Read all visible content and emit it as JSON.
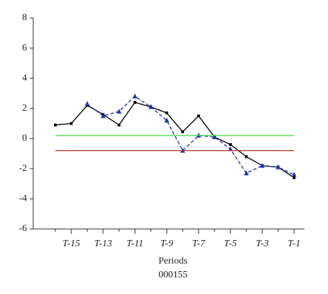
{
  "chart_data": {
    "type": "line",
    "categories": [
      null,
      "T-15",
      null,
      "T-13",
      null,
      "T-11",
      null,
      "T-9",
      null,
      "T-7",
      null,
      "T-5",
      null,
      "T-3",
      null,
      "T-1"
    ],
    "series": [
      {
        "color": "#000000",
        "style": "solid",
        "marker": "square",
        "values": [
          0.9,
          1.0,
          2.2,
          1.6,
          0.9,
          2.4,
          2.1,
          1.7,
          0.45,
          1.5,
          0.1,
          -0.4,
          -1.2,
          -1.8,
          -1.9,
          -2.6
        ]
      },
      {
        "color": "#2233aa",
        "style": "dashed",
        "marker": "triangle",
        "values": [
          null,
          null,
          2.3,
          1.5,
          1.8,
          2.8,
          2.1,
          1.2,
          -0.8,
          0.2,
          0.1,
          -0.7,
          -2.3,
          -1.8,
          -1.9,
          -2.4
        ]
      },
      {
        "color": "#44dd44",
        "style": "solid",
        "marker": "none",
        "values": [
          0.2,
          0.2,
          0.2,
          0.2,
          0.2,
          0.2,
          0.2,
          0.2,
          0.2,
          0.2,
          0.2,
          0.2,
          0.2,
          0.2,
          0.2,
          0.2
        ]
      },
      {
        "color": "#b04030",
        "style": "solid",
        "marker": "none",
        "values": [
          -0.8,
          -0.8,
          -0.8,
          -0.8,
          -0.8,
          -0.8,
          -0.8,
          -0.8,
          -0.8,
          -0.8,
          -0.8,
          -0.8,
          -0.8,
          -0.8,
          -0.8,
          -0.8
        ]
      }
    ],
    "ylim": [
      -6,
      8
    ],
    "yticks": [
      -6,
      -4,
      -2,
      0,
      2,
      4,
      6,
      8
    ],
    "x_label": "Periods",
    "caption": "000155"
  }
}
